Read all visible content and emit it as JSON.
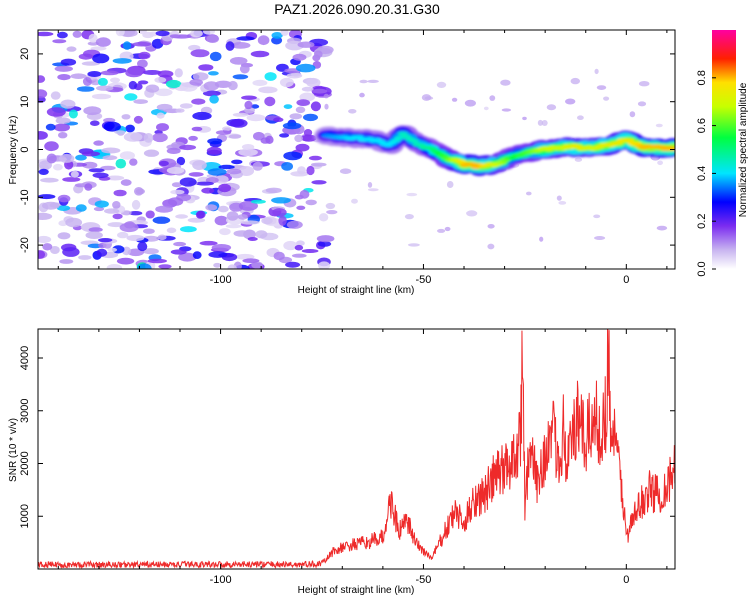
{
  "title": "PAZ1.2026.090.20.31.G30",
  "chart_data": [
    {
      "type": "heatmap",
      "xlabel": "Height of straight line (km)",
      "ylabel": "Frequency (Hz)",
      "xlim": [
        -145,
        12
      ],
      "ylim": [
        -25,
        25
      ],
      "x_ticks": [
        -100,
        -50,
        0
      ],
      "y_ticks": [
        -20,
        -10,
        0,
        10,
        20
      ],
      "colorbar": {
        "label": "Normalized spectral amplitude",
        "range": [
          0,
          1
        ],
        "ticks": [
          "0.0",
          "0.2",
          "0.4",
          "0.6",
          "0.8"
        ],
        "colors": [
          "#ffffff",
          "#c8b4f0",
          "#7b2cf0",
          "#0000ff",
          "#00e5ff",
          "#00ff40",
          "#c8ff00",
          "#ffe000",
          "#ff2000",
          "#ff00a0"
        ]
      },
      "noise_region": {
        "x_from": -145,
        "x_to": -74,
        "amplitude": 0.25
      },
      "signal_track": {
        "x": [
          -74,
          -68,
          -62,
          -58,
          -55,
          -52,
          -48,
          -44,
          -40,
          -36,
          -32,
          -28,
          -24,
          -20,
          -16,
          -12,
          -8,
          -4,
          0,
          4,
          8,
          12
        ],
        "freq": [
          3,
          2.5,
          2,
          1,
          3.5,
          1.5,
          0,
          -2,
          -3,
          -3.5,
          -3,
          -1.5,
          -0.5,
          0,
          0.5,
          0.5,
          0.3,
          1,
          2,
          0.5,
          0.3,
          0.3
        ],
        "amplitude": [
          0.35,
          0.4,
          0.4,
          0.4,
          0.45,
          0.45,
          0.5,
          0.6,
          0.8,
          0.8,
          0.7,
          0.55,
          0.6,
          0.7,
          0.7,
          0.75,
          0.7,
          0.75,
          0.75,
          0.8,
          0.8,
          0.8
        ]
      }
    },
    {
      "type": "line",
      "xlabel": "Height of straight line (km)",
      "ylabel": "SNR (10 * v/v)",
      "xlim": [
        -145,
        12
      ],
      "ylim": [
        0,
        4550
      ],
      "x_ticks": [
        -100,
        -50,
        0
      ],
      "y_ticks": [
        1000,
        2000,
        3000,
        4000
      ],
      "color": "#ee2a2a",
      "series": [
        {
          "name": "SNR",
          "x": [
            -145,
            -120,
            -100,
            -80,
            -75,
            -72,
            -68,
            -64,
            -60,
            -58,
            -56,
            -54,
            -52,
            -48,
            -45,
            -42,
            -40,
            -38,
            -35,
            -32,
            -30,
            -28,
            -27,
            -26,
            -25.5,
            -25,
            -24,
            -22,
            -20,
            -18,
            -16,
            -15.5,
            -15,
            -14,
            -12,
            -10,
            -8,
            -6,
            -5,
            -4.5,
            -4,
            -3,
            -1,
            0,
            2,
            4,
            6,
            8,
            10,
            12
          ],
          "y": [
            80,
            80,
            90,
            85,
            100,
            350,
            450,
            500,
            600,
            1300,
            700,
            900,
            500,
            200,
            650,
            1100,
            800,
            1300,
            1400,
            1800,
            1900,
            2100,
            2300,
            2700,
            4450,
            1100,
            2200,
            1700,
            2200,
            2500,
            2000,
            3600,
            2000,
            2300,
            2800,
            2400,
            2900,
            2600,
            3000,
            4450,
            2900,
            2500,
            1500,
            600,
            1000,
            1300,
            1500,
            1400,
            1600,
            1900
          ]
        }
      ]
    }
  ]
}
